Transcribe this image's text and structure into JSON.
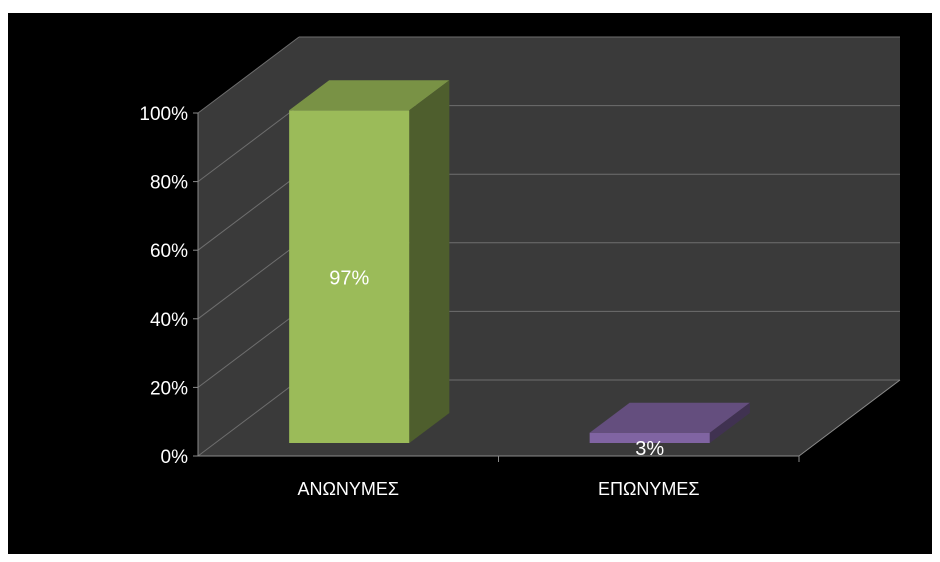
{
  "chart_data": {
    "type": "bar",
    "three_d": true,
    "categories": [
      "ΑΝΩΝΥΜΕΣ",
      "ΕΠΩΝΥΜΕΣ"
    ],
    "series": [
      {
        "values": [
          97,
          3
        ],
        "labels": [
          "97%",
          "3%"
        ],
        "colors": [
          "#9bbb59",
          "#8064a2"
        ]
      }
    ],
    "y_ticks": [
      "0%",
      "20%",
      "40%",
      "60%",
      "80%",
      "100%"
    ],
    "ylim": [
      0,
      100
    ],
    "grid": true,
    "legend": "none",
    "colors": {
      "background": "#000000",
      "wall": "#3a3a3a",
      "floor": "#3a3a3a",
      "grid": "#6e6e6e",
      "text": "#ffffff"
    }
  }
}
